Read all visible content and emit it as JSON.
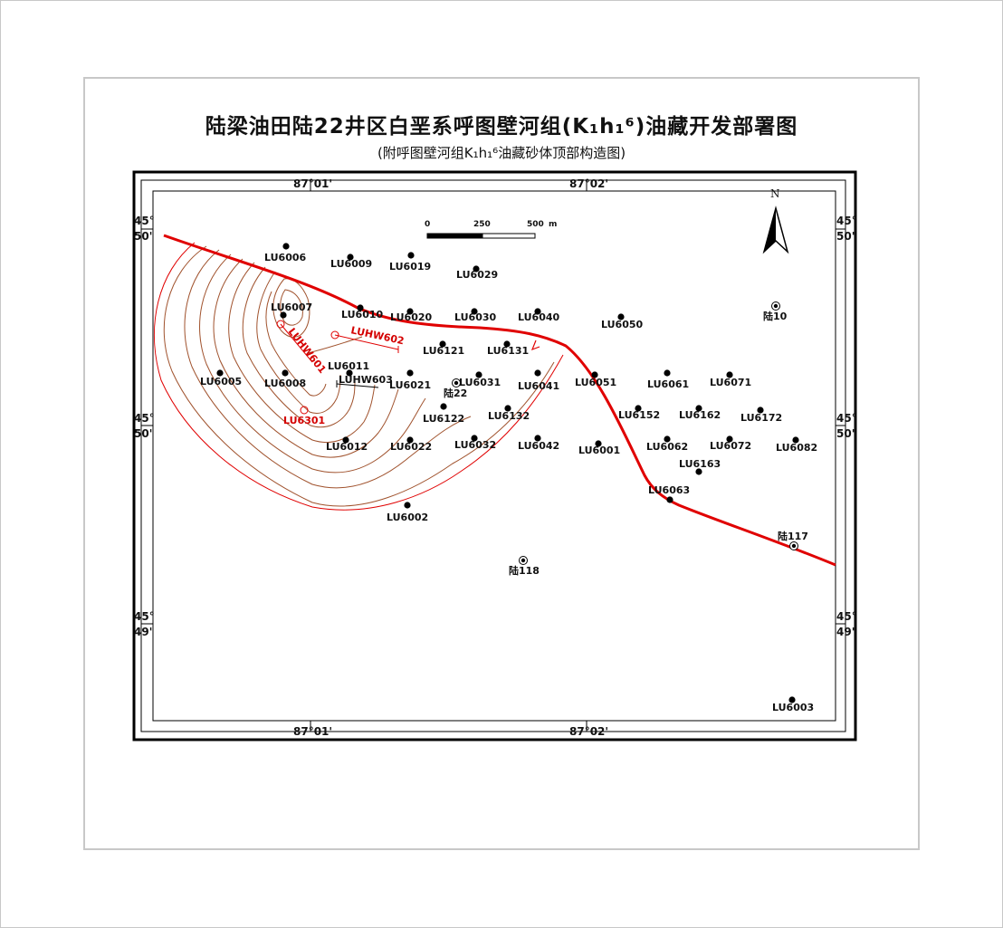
{
  "title": "陆梁油田陆22井区白垩系呼图壁河组(K₁h₁⁶)油藏开发部署图",
  "subtitle": "(附呼图壁河组K₁h₁⁶油藏砂体顶部构造图)",
  "coords": {
    "top_left_lon": "87°01'",
    "top_right_lon": "87°02'",
    "bottom_left_lon": "87°01'",
    "bottom_right_lon": "87°02'",
    "lat_upper_deg": "45°",
    "lat_upper_min": "50'",
    "lat_mid_deg": "45°",
    "lat_mid_min": "50'",
    "lat_lower_deg": "45°",
    "lat_lower_min": "49'"
  },
  "scale_bar": {
    "ticks": [
      "0",
      "250",
      "500"
    ],
    "unit": "m"
  },
  "north_label": "N",
  "wells": [
    {
      "name": "LU6006",
      "kind": "dot"
    },
    {
      "name": "LU6009",
      "kind": "dot"
    },
    {
      "name": "LU6019",
      "kind": "dot"
    },
    {
      "name": "LU6029",
      "kind": "dot"
    },
    {
      "name": "LU6007",
      "kind": "dot"
    },
    {
      "name": "LU6010",
      "kind": "dot"
    },
    {
      "name": "LU6020",
      "kind": "dot"
    },
    {
      "name": "LU6030",
      "kind": "dot"
    },
    {
      "name": "LU6040",
      "kind": "dot"
    },
    {
      "name": "LU6050",
      "kind": "dot"
    },
    {
      "name": "陆10",
      "kind": "circle"
    },
    {
      "name": "LU6121",
      "kind": "dot"
    },
    {
      "name": "LU6131",
      "kind": "dot"
    },
    {
      "name": "LU6011",
      "kind": "dot"
    },
    {
      "name": "LU6005",
      "kind": "dot"
    },
    {
      "name": "LU6008",
      "kind": "dot"
    },
    {
      "name": "LU6021",
      "kind": "dot"
    },
    {
      "name": "LU6031",
      "kind": "dot"
    },
    {
      "name": "陆22",
      "kind": "circle"
    },
    {
      "name": "LU6041",
      "kind": "dot"
    },
    {
      "name": "LU6051",
      "kind": "dot"
    },
    {
      "name": "LU6061",
      "kind": "dot"
    },
    {
      "name": "LU6071",
      "kind": "dot"
    },
    {
      "name": "LU6122",
      "kind": "dot"
    },
    {
      "name": "LU6132",
      "kind": "dot"
    },
    {
      "name": "LU6152",
      "kind": "dot"
    },
    {
      "name": "LU6162",
      "kind": "dot"
    },
    {
      "name": "LU6172",
      "kind": "dot"
    },
    {
      "name": "LU6012",
      "kind": "dot"
    },
    {
      "name": "LU6022",
      "kind": "dot"
    },
    {
      "name": "LU6032",
      "kind": "dot"
    },
    {
      "name": "LU6042",
      "kind": "dot"
    },
    {
      "name": "LU6001",
      "kind": "dot"
    },
    {
      "name": "LU6062",
      "kind": "dot"
    },
    {
      "name": "LU6072",
      "kind": "dot"
    },
    {
      "name": "LU6082",
      "kind": "dot"
    },
    {
      "name": "LU6163",
      "kind": "dot"
    },
    {
      "name": "LU6063",
      "kind": "dot"
    },
    {
      "name": "LU6002",
      "kind": "dot"
    },
    {
      "name": "陆117",
      "kind": "circle"
    },
    {
      "name": "陆118",
      "kind": "circle"
    },
    {
      "name": "LU6003",
      "kind": "dot"
    }
  ],
  "horizontal_wells": [
    {
      "name": "LUHW601"
    },
    {
      "name": "LUHW602"
    },
    {
      "name": "LUHW603"
    }
  ],
  "red_well": "LU6301",
  "colors": {
    "fault": "#e00000",
    "contour": "#a0522d",
    "red_text": "#d40000",
    "frame": "#000000"
  }
}
